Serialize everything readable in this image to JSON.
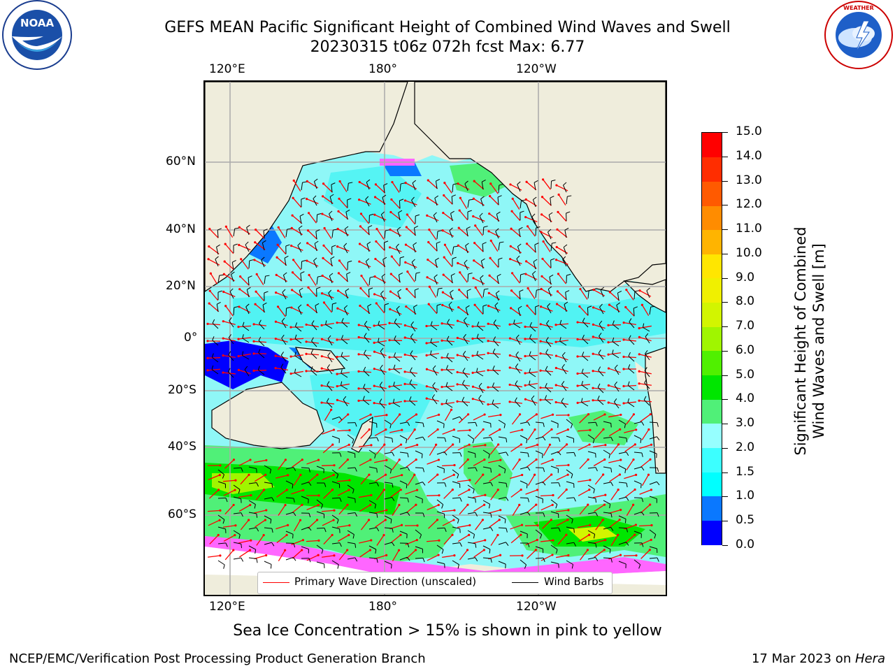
{
  "header": {
    "title_line1": "GEFS MEAN Pacific Significant Height of Combined Wind Waves and Swell",
    "title_line2": "20230315 t06z 072h fcst   Max: 6.77"
  },
  "logos": {
    "left": "NOAA",
    "left_ring_text": "NATIONAL OCEANIC AND ATMOSPHERIC ADMINISTRATION · U.S. DEPARTMENT OF COMMERCE",
    "right_ring_text": "NATIONAL WEATHER SERVICE"
  },
  "axes": {
    "top_lon": [
      "120°E",
      "180°",
      "120°W"
    ],
    "bottom_lon": [
      "120°E",
      "180°",
      "120°W"
    ],
    "lat": [
      "60°N",
      "40°N",
      "20°N",
      "0°",
      "20°S",
      "40°S",
      "60°S"
    ]
  },
  "legend": {
    "wave_label": "Primary Wave Direction (unscaled)",
    "barb_label": "Wind Barbs",
    "wave_color": "#ff0000",
    "barb_color": "#000000"
  },
  "colorbar": {
    "label_line1": "Significant Height of Combined",
    "label_line2": "Wind Waves and Swell [m]",
    "ticks": [
      "15.0",
      "14.0",
      "13.0",
      "12.0",
      "11.0",
      "10.0",
      "9.0",
      "8.0",
      "7.0",
      "6.0",
      "5.0",
      "4.0",
      "3.0",
      "2.0",
      "1.5",
      "1.0",
      "0.5",
      "0.0"
    ],
    "colors": [
      "#0000ff",
      "#0a78ff",
      "#00ffff",
      "#3cffff",
      "#96ffff",
      "#50f078",
      "#00e600",
      "#50f000",
      "#a0f500",
      "#d2f500",
      "#f0f000",
      "#ffe600",
      "#ffb400",
      "#ff8c00",
      "#ff5a00",
      "#ff2d00",
      "#ff0000"
    ]
  },
  "note": "Sea Ice Concentration > 15% is shown in pink to yellow",
  "footer": {
    "left": "NCEP/EMC/Verification Post Processing Product Generation Branch",
    "right_prefix": "17 Mar 2023 on ",
    "right_host": "Hera"
  },
  "colors": {
    "land": "#efeddc",
    "ocean_main": "#8ff7f7",
    "ocean_mid": "#3cf2f2",
    "high_wave": "#4ee64e",
    "low_wave": "#0000ff",
    "ice": "#ff66ff"
  }
}
